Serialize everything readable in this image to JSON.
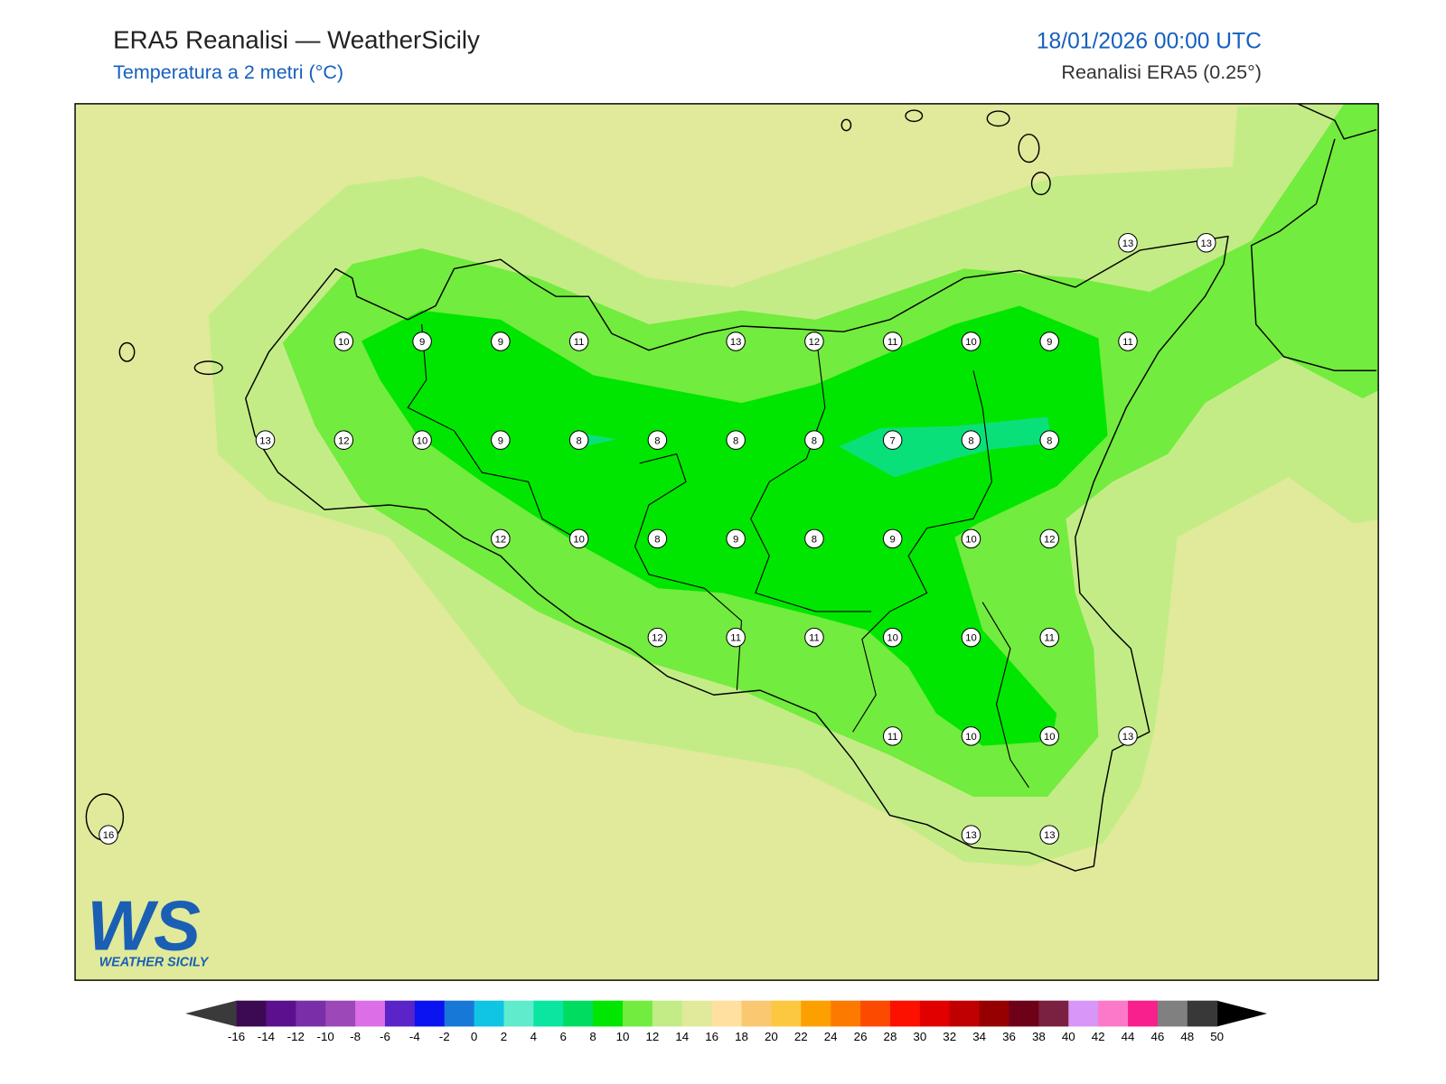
{
  "header": {
    "title": "ERA5 Reanalisi — WeatherSicily",
    "subtitle": "Temperatura a 2 metri (°C)",
    "datetime": "18/01/2026 00:00 UTC",
    "source": "Reanalisi ERA5 (0.25°)"
  },
  "stations": {
    "rows": [
      [
        null,
        null,
        null,
        null,
        null,
        null,
        null,
        null,
        null,
        null,
        null,
        null,
        null,
        13,
        13
      ],
      [
        null,
        null,
        null,
        10,
        9,
        9,
        11,
        null,
        13,
        12,
        11,
        10,
        9,
        11,
        null
      ],
      [
        null,
        null,
        13,
        12,
        10,
        9,
        8,
        8,
        8,
        8,
        7,
        8,
        8,
        null,
        null
      ],
      [
        null,
        null,
        null,
        null,
        null,
        12,
        10,
        8,
        9,
        8,
        9,
        10,
        12,
        null,
        null
      ],
      [
        null,
        null,
        null,
        null,
        null,
        null,
        null,
        12,
        11,
        11,
        10,
        10,
        11,
        null,
        null
      ],
      [
        null,
        null,
        null,
        null,
        null,
        null,
        null,
        null,
        null,
        null,
        11,
        10,
        10,
        13,
        null
      ],
      [
        16,
        null,
        null,
        null,
        null,
        null,
        null,
        null,
        null,
        null,
        null,
        13,
        13,
        null,
        null
      ]
    ]
  },
  "colorbar": {
    "ticks": [
      -16,
      -14,
      -12,
      -10,
      -8,
      -6,
      -4,
      -2,
      0,
      2,
      4,
      6,
      8,
      10,
      12,
      14,
      16,
      18,
      20,
      22,
      24,
      26,
      28,
      30,
      32,
      34,
      36,
      38,
      40,
      42,
      44,
      46,
      48,
      50
    ],
    "colors": [
      "#3b0a52",
      "#5c108e",
      "#7a2ea8",
      "#9c48b8",
      "#dc6ee8",
      "#5a24c8",
      "#0a14f0",
      "#1878d8",
      "#10c4e4",
      "#5eeccc",
      "#0ae6a0",
      "#00dc60",
      "#00e600",
      "#72ec3e",
      "#c4ec86",
      "#e0ea9a",
      "#ffe0a0",
      "#fac870",
      "#fcc840",
      "#fca000",
      "#fc7a00",
      "#fc4a00",
      "#fc1000",
      "#e00000",
      "#c00000",
      "#960000",
      "#6e0018",
      "#7a2040",
      "#d896f8",
      "#fc78c8",
      "#f8208c",
      "#808080",
      "#383838"
    ]
  },
  "logo": {
    "mark": "WS",
    "name": "WEATHER SICILY"
  }
}
